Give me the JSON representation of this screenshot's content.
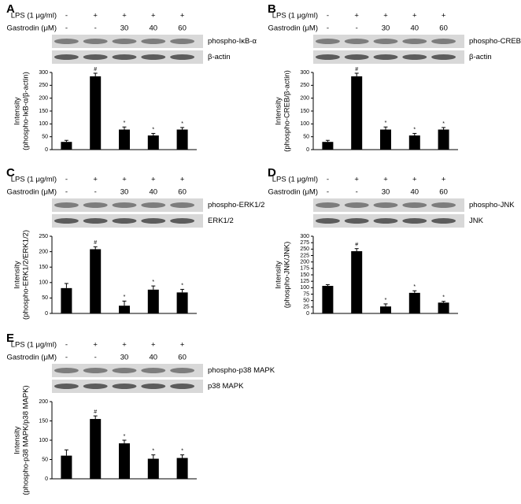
{
  "chart_data": [
    {
      "type": "bar",
      "panel": "A",
      "treatments": [
        {
          "label": "LPS (1 μg/ml)",
          "cells": [
            "-",
            "+",
            "+",
            "+",
            "+"
          ]
        },
        {
          "label": "Gastrodin (μM)",
          "cells": [
            "-",
            "-",
            "30",
            "40",
            "60"
          ]
        }
      ],
      "blots": [
        "phospho-IκB-α",
        "β-actin"
      ],
      "ylabel": [
        "Intensity",
        "(phospho-IκB-α/β-actin)"
      ],
      "categories": [
        null,
        null,
        null,
        null,
        null
      ],
      "values": [
        30,
        285,
        78,
        55,
        78
      ],
      "errors": [
        6,
        12,
        10,
        8,
        8
      ],
      "annotations": [
        null,
        "#",
        "*",
        "*",
        "*"
      ],
      "color": "#000000",
      "ylim": [
        0,
        300
      ],
      "yticks": [
        0,
        50,
        100,
        150,
        200,
        250,
        300
      ]
    },
    {
      "type": "bar",
      "panel": "B",
      "treatments": [
        {
          "label": "LPS (1 μg/ml)",
          "cells": [
            "-",
            "+",
            "+",
            "+",
            "+"
          ]
        },
        {
          "label": "Gastrodin (μM)",
          "cells": [
            "-",
            "-",
            "30",
            "40",
            "60"
          ]
        }
      ],
      "blots": [
        "phospho-CREB",
        "β-actin"
      ],
      "ylabel": [
        "Intensity",
        "(phospho-CREB/β-actin)"
      ],
      "categories": [
        null,
        null,
        null,
        null,
        null
      ],
      "values": [
        30,
        285,
        78,
        55,
        78
      ],
      "errors": [
        6,
        12,
        10,
        8,
        8
      ],
      "annotations": [
        null,
        "#",
        "*",
        "*",
        "*"
      ],
      "color": "#000000",
      "ylim": [
        0,
        300
      ],
      "yticks": [
        0,
        50,
        100,
        150,
        200,
        250,
        300
      ]
    },
    {
      "type": "bar",
      "panel": "C",
      "treatments": [
        {
          "label": "LPS (1 μg/ml)",
          "cells": [
            "-",
            "+",
            "+",
            "+",
            "+"
          ]
        },
        {
          "label": "Gastrodin (μM)",
          "cells": [
            "-",
            "-",
            "30",
            "40",
            "60"
          ]
        }
      ],
      "blots": [
        "phospho-ERK1/2",
        "ERK1/2"
      ],
      "ylabel": [
        "Intensity",
        "(phospho-ERK1/2/ERK1/2)"
      ],
      "categories": [
        null,
        null,
        null,
        null,
        null
      ],
      "values": [
        82,
        208,
        25,
        77,
        68
      ],
      "errors": [
        15,
        8,
        15,
        12,
        10
      ],
      "annotations": [
        null,
        "#",
        "*",
        "*",
        "*"
      ],
      "color": "#000000",
      "ylim": [
        0,
        250
      ],
      "yticks": [
        0,
        50,
        100,
        150,
        200,
        250
      ]
    },
    {
      "type": "bar",
      "panel": "D",
      "treatments": [
        {
          "label": "LPS (1 μg/ml)",
          "cells": [
            "-",
            "+",
            "+",
            "+",
            "+"
          ]
        },
        {
          "label": "Gastrodin (μM)",
          "cells": [
            "-",
            "-",
            "30",
            "40",
            "60"
          ]
        }
      ],
      "blots": [
        "phospho-JNK",
        "JNK"
      ],
      "ylabel": [
        "Intensity",
        "(phospho-JNK/JNK)"
      ],
      "categories": [
        null,
        null,
        null,
        null,
        null
      ],
      "values": [
        107,
        242,
        27,
        80,
        42
      ],
      "errors": [
        5,
        10,
        10,
        8,
        5
      ],
      "annotations": [
        null,
        "#",
        "*",
        "*",
        "*"
      ],
      "color": "#000000",
      "ylim": [
        0,
        300
      ],
      "yticks": [
        0,
        25,
        50,
        75,
        100,
        125,
        150,
        175,
        200,
        225,
        250,
        275,
        300
      ]
    },
    {
      "type": "bar",
      "panel": "E",
      "treatments": [
        {
          "label": "LPS (1 μg/ml)",
          "cells": [
            "-",
            "+",
            "+",
            "+",
            "+"
          ]
        },
        {
          "label": "Gastrodin (μM)",
          "cells": [
            "-",
            "-",
            "30",
            "40",
            "60"
          ]
        }
      ],
      "blots": [
        "phospho-p38 MAPK",
        "p38 MAPK"
      ],
      "ylabel": [
        "Intensity",
        "(phospho-p38 MAPK/p38 MAPK)"
      ],
      "categories": [
        null,
        null,
        null,
        null,
        null
      ],
      "values": [
        60,
        155,
        92,
        52,
        54
      ],
      "errors": [
        15,
        8,
        8,
        10,
        8
      ],
      "annotations": [
        null,
        "#",
        "*",
        "*",
        "*"
      ],
      "color": "#000000",
      "ylim": [
        0,
        200
      ],
      "yticks": [
        0,
        50,
        100,
        150,
        200
      ]
    }
  ]
}
